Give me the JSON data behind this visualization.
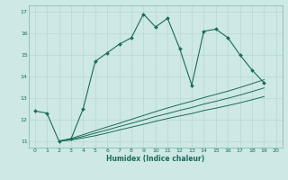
{
  "xlabel": "Humidex (Indice chaleur)",
  "bg_color": "#cde8e5",
  "grid_color": "#b0d8d4",
  "line_color": "#1a6b5a",
  "xlim": [
    -0.5,
    20.5
  ],
  "ylim": [
    10.7,
    17.3
  ],
  "xticks": [
    0,
    1,
    2,
    3,
    4,
    5,
    6,
    7,
    8,
    9,
    10,
    11,
    12,
    13,
    14,
    15,
    16,
    17,
    18,
    19,
    20
  ],
  "yticks": [
    11,
    12,
    13,
    14,
    15,
    16,
    17
  ],
  "main_line_x": [
    0,
    1,
    2,
    3,
    4,
    5,
    6,
    7,
    8,
    9,
    10,
    11,
    12,
    13,
    14,
    15,
    16,
    17,
    18,
    19
  ],
  "main_line_y": [
    12.4,
    12.3,
    11.0,
    11.1,
    12.5,
    14.7,
    15.1,
    15.5,
    15.8,
    16.9,
    16.3,
    16.7,
    15.3,
    13.6,
    16.1,
    16.2,
    15.8,
    15.0,
    14.3,
    13.7
  ],
  "lower_line1_x": [
    2,
    3,
    4,
    5,
    6,
    7,
    8,
    9,
    10,
    11,
    12,
    13,
    14,
    15,
    16,
    17,
    18,
    19
  ],
  "lower_line1_y": [
    11.0,
    11.05,
    11.15,
    11.25,
    11.38,
    11.52,
    11.65,
    11.78,
    11.92,
    12.05,
    12.17,
    12.28,
    12.42,
    12.53,
    12.65,
    12.78,
    12.92,
    13.07
  ],
  "lower_line2_x": [
    2,
    3,
    4,
    5,
    6,
    7,
    8,
    9,
    10,
    11,
    12,
    13,
    14,
    15,
    16,
    17,
    18,
    19
  ],
  "lower_line2_y": [
    11.0,
    11.08,
    11.22,
    11.37,
    11.52,
    11.68,
    11.83,
    11.98,
    12.14,
    12.28,
    12.43,
    12.56,
    12.72,
    12.85,
    12.99,
    13.14,
    13.3,
    13.47
  ],
  "lower_line3_x": [
    2,
    3,
    4,
    5,
    6,
    7,
    8,
    9,
    10,
    11,
    12,
    13,
    14,
    15,
    16,
    17,
    18,
    19
  ],
  "lower_line3_y": [
    11.0,
    11.12,
    11.3,
    11.48,
    11.66,
    11.83,
    12.01,
    12.19,
    12.37,
    12.54,
    12.7,
    12.85,
    13.02,
    13.17,
    13.32,
    13.49,
    13.67,
    13.85
  ]
}
